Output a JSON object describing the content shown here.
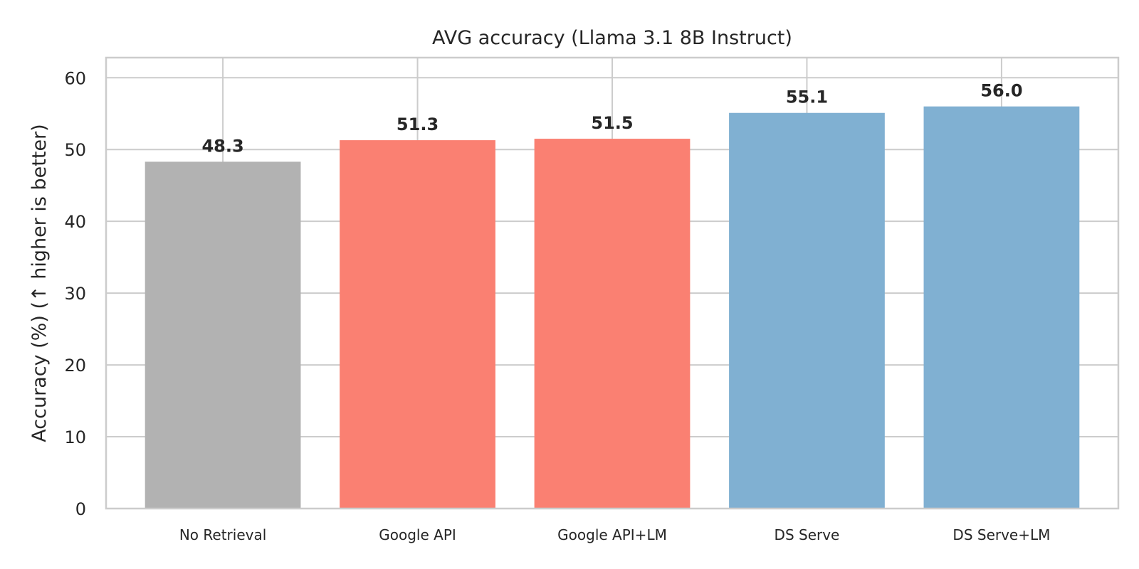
{
  "chart_data": {
    "type": "bar",
    "title": "AVG accuracy (Llama 3.1 8B Instruct)",
    "xlabel": "",
    "ylabel": "Accuracy (%) (↑ higher is better)",
    "categories": [
      "No Retrieval",
      "Google API",
      "Google API+LM",
      "DS Serve",
      "DS Serve+LM"
    ],
    "values": [
      48.3,
      51.3,
      51.5,
      55.1,
      56.0
    ],
    "value_labels": [
      "48.3",
      "51.3",
      "51.5",
      "55.1",
      "56.0"
    ],
    "bar_colors": [
      "#b2b2b2",
      "#fa8072",
      "#fa8072",
      "#80b0d2",
      "#80b0d2"
    ],
    "ylim": [
      0,
      62.8
    ],
    "yticks": [
      0,
      10,
      20,
      30,
      40,
      50,
      60
    ],
    "grid": true,
    "legend": "none"
  }
}
